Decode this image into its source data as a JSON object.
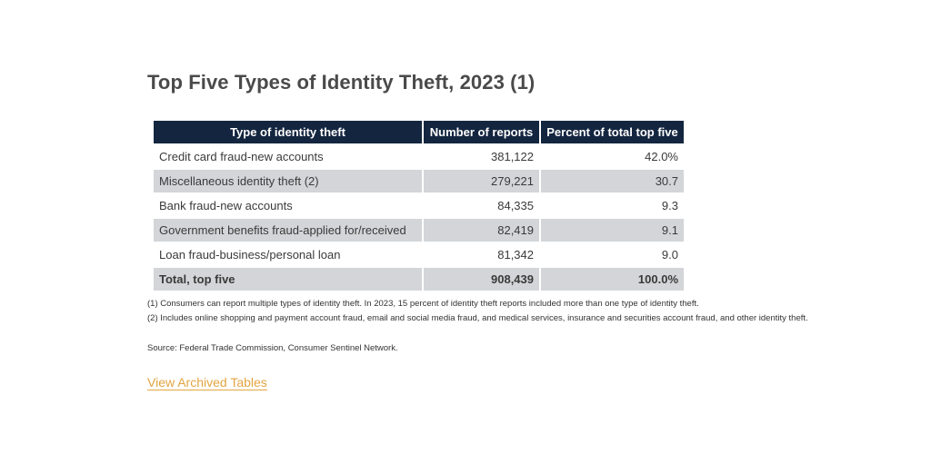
{
  "title": "Top Five Types of Identity Theft, 2023 (1)",
  "table": {
    "headers": [
      "Type of identity theft",
      "Number of reports",
      "Percent of total top five"
    ],
    "rows": [
      [
        "Credit card fraud-new accounts",
        "381,122",
        "42.0%"
      ],
      [
        "Miscellaneous identity theft (2)",
        "279,221",
        "30.7"
      ],
      [
        "Bank fraud-new accounts",
        "84,335",
        "9.3"
      ],
      [
        "Government benefits fraud-applied for/received",
        "82,419",
        "9.1"
      ],
      [
        "Loan fraud-business/personal loan",
        "81,342",
        "9.0"
      ]
    ],
    "total": [
      "Total, top five",
      "908,439",
      "100.0%"
    ]
  },
  "notes": [
    "(1) Consumers can report multiple types of identity theft. In 2023, 15 percent of identity theft reports included more than one type of identity theft.",
    "(2) Includes online shopping and payment account fraud, email and social media fraud, and medical services, insurance and securities account fraud, and other identity theft."
  ],
  "source": "Source: Federal Trade Commission, Consumer Sentinel Network.",
  "link": {
    "label": "View Archived Tables",
    "color": "#e3a541"
  },
  "colors": {
    "header_bg": "#14263f",
    "shaded_row_bg": "#d3d5d8"
  }
}
